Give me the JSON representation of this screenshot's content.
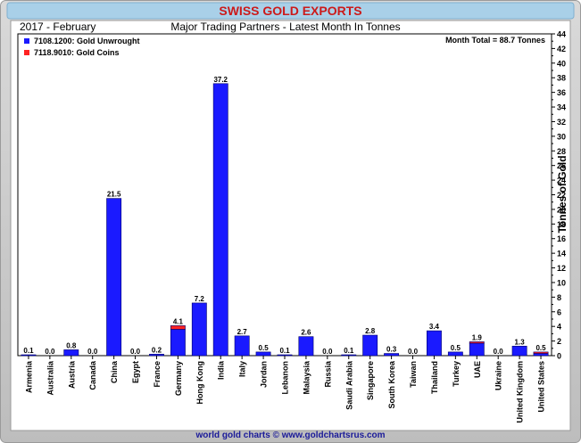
{
  "header": {
    "title": "SWISS GOLD EXPORTS",
    "period": "2017 - February",
    "subtitle": "Major Trading Partners - Latest Month In Tonnes"
  },
  "month_total": "Month Total = 88.7 Tonnes",
  "footer": "world gold charts © www.goldchartsrus.com",
  "colors": {
    "title_bar": "#a9d0e8",
    "title_text": "#cc1a1a",
    "unwrought": "#1a1aff",
    "coins": "#ff2222",
    "panel_outer": "#c8c8c8"
  },
  "chart_data": {
    "type": "bar",
    "stacked": true,
    "categories": [
      "Armenia",
      "Australia",
      "Austria",
      "Canada",
      "China",
      "Egypt",
      "France",
      "Germany",
      "Hong Kong",
      "India",
      "Italy",
      "Jordan",
      "Lebanon",
      "Malaysia",
      "Russia",
      "Saudi Arabia",
      "Singapore",
      "South Korea",
      "Taiwan",
      "Thailand",
      "Turkey",
      "UAE",
      "Ukraine",
      "United Kingdom",
      "United States"
    ],
    "series": [
      {
        "name": "7108.1200: Gold Unwrought",
        "values": [
          0.1,
          0.0,
          0.8,
          0.0,
          21.5,
          0.0,
          0.2,
          3.6,
          7.2,
          37.2,
          2.7,
          0.5,
          0.1,
          2.6,
          0.0,
          0.1,
          2.8,
          0.3,
          0.0,
          3.4,
          0.5,
          1.7,
          0.0,
          1.3,
          0.3
        ]
      },
      {
        "name": "7118.9010: Gold Coins",
        "values": [
          0,
          0,
          0,
          0,
          0,
          0,
          0,
          0.5,
          0,
          0,
          0,
          0,
          0,
          0,
          0,
          0,
          0,
          0,
          0,
          0,
          0,
          0.2,
          0,
          0,
          0.2
        ]
      }
    ],
    "totals": [
      "0.1",
      "0.0",
      "0.8",
      "0.0",
      "21.5",
      "0.0",
      "0.2",
      "4.1",
      "7.2",
      "37.2",
      "2.7",
      "0.5",
      "0.1",
      "2.6",
      "0.0",
      "0.1",
      "2.8",
      "0.3",
      "0.0",
      "3.4",
      "0.5",
      "1.9",
      "0.0",
      "1.3",
      "0.5"
    ],
    "ylabel": "Tonnes of Gold",
    "ylim": [
      0,
      44
    ],
    "yticks": [
      0,
      2,
      4,
      6,
      8,
      10,
      12,
      14,
      16,
      18,
      20,
      22,
      24,
      26,
      28,
      30,
      32,
      34,
      36,
      38,
      40,
      42,
      44
    ],
    "legend_position": "top-left",
    "grid": false
  }
}
